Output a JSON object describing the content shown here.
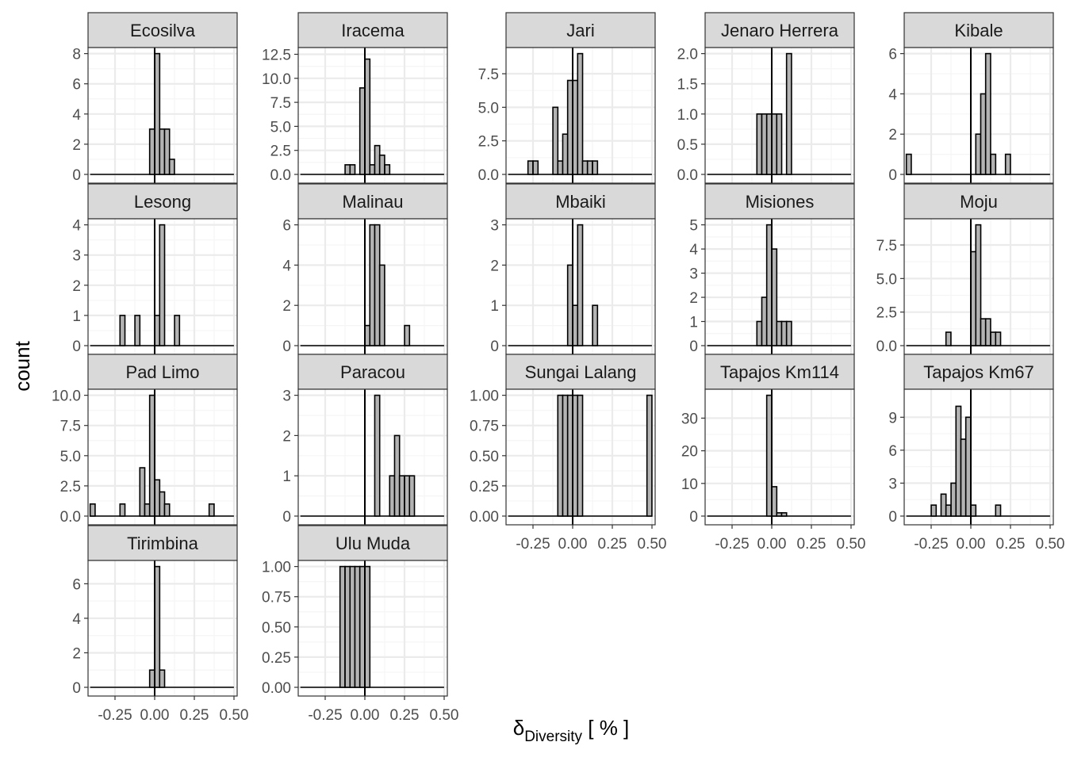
{
  "chart_data": {
    "type": "bar",
    "subtype": "faceted-histogram",
    "ylabel": "count",
    "xlabel": {
      "symbol": "δ",
      "subscript": "Diversity",
      "unit": "[ % ]"
    },
    "x_range": [
      -0.42,
      0.52
    ],
    "x_ticks": [
      {
        "value": -0.25,
        "label": "-0.25"
      },
      {
        "value": 0.0,
        "label": "0.00"
      },
      {
        "value": 0.25,
        "label": "0.25"
      },
      {
        "value": 0.5,
        "label": "0.50"
      }
    ],
    "bin_width": 0.03125,
    "reference_line_x": 0,
    "scales": "free_y",
    "grid": true,
    "facets": [
      {
        "name": "Ecosilva",
        "ymax": 8.4,
        "y_ticks": [
          0,
          2,
          4,
          6,
          8
        ],
        "y_labels": [
          "0",
          "2",
          "4",
          "6",
          "8"
        ],
        "bins": [
          {
            "x": -0.016,
            "count": 3
          },
          {
            "x": 0.016,
            "count": 8
          },
          {
            "x": 0.047,
            "count": 3
          },
          {
            "x": 0.078,
            "count": 3
          },
          {
            "x": 0.109,
            "count": 1
          }
        ]
      },
      {
        "name": "Iracema",
        "ymax": 13.2,
        "y_ticks": [
          0,
          2.5,
          5,
          7.5,
          10,
          12.5
        ],
        "y_labels": [
          "0.0",
          "2.5",
          "5.0",
          "7.5",
          "10.0",
          "12.5"
        ],
        "bins": [
          {
            "x": -0.109,
            "count": 1
          },
          {
            "x": -0.078,
            "count": 1
          },
          {
            "x": -0.016,
            "count": 9
          },
          {
            "x": 0.016,
            "count": 12
          },
          {
            "x": 0.047,
            "count": 1
          },
          {
            "x": 0.078,
            "count": 3
          },
          {
            "x": 0.109,
            "count": 2
          },
          {
            "x": 0.141,
            "count": 1
          }
        ]
      },
      {
        "name": "Jari",
        "ymax": 9.45,
        "y_ticks": [
          0,
          2.5,
          5,
          7.5
        ],
        "y_labels": [
          "0.0",
          "2.5",
          "5.0",
          "7.5"
        ],
        "bins": [
          {
            "x": -0.266,
            "count": 1
          },
          {
            "x": -0.234,
            "count": 1
          },
          {
            "x": -0.109,
            "count": 5
          },
          {
            "x": -0.078,
            "count": 1
          },
          {
            "x": -0.047,
            "count": 3
          },
          {
            "x": -0.016,
            "count": 7
          },
          {
            "x": 0.016,
            "count": 7
          },
          {
            "x": 0.047,
            "count": 9
          },
          {
            "x": 0.078,
            "count": 1
          },
          {
            "x": 0.109,
            "count": 1
          },
          {
            "x": 0.141,
            "count": 1
          }
        ]
      },
      {
        "name": "Jenaro Herrera",
        "ymax": 2.1,
        "y_ticks": [
          0,
          0.5,
          1,
          1.5,
          2
        ],
        "y_labels": [
          "0.0",
          "0.5",
          "1.0",
          "1.5",
          "2.0"
        ],
        "bins": [
          {
            "x": -0.078,
            "count": 1
          },
          {
            "x": -0.047,
            "count": 1
          },
          {
            "x": -0.016,
            "count": 1
          },
          {
            "x": 0.016,
            "count": 1
          },
          {
            "x": 0.047,
            "count": 1
          },
          {
            "x": 0.109,
            "count": 2
          }
        ]
      },
      {
        "name": "Kibale",
        "ymax": 6.3,
        "y_ticks": [
          0,
          2,
          4,
          6
        ],
        "y_labels": [
          "0",
          "2",
          "4",
          "6"
        ],
        "bins": [
          {
            "x": -0.391,
            "count": 1
          },
          {
            "x": 0.047,
            "count": 2
          },
          {
            "x": 0.078,
            "count": 4
          },
          {
            "x": 0.109,
            "count": 6
          },
          {
            "x": 0.141,
            "count": 1
          },
          {
            "x": 0.234,
            "count": 1
          }
        ]
      },
      {
        "name": "Lesong",
        "ymax": 4.2,
        "y_ticks": [
          0,
          1,
          2,
          3,
          4
        ],
        "y_labels": [
          "0",
          "1",
          "2",
          "3",
          "4"
        ],
        "bins": [
          {
            "x": -0.203,
            "count": 1
          },
          {
            "x": -0.109,
            "count": 1
          },
          {
            "x": 0.016,
            "count": 1
          },
          {
            "x": 0.047,
            "count": 4
          },
          {
            "x": 0.141,
            "count": 1
          }
        ]
      },
      {
        "name": "Malinau",
        "ymax": 6.3,
        "y_ticks": [
          0,
          2,
          4,
          6
        ],
        "y_labels": [
          "0",
          "2",
          "4",
          "6"
        ],
        "bins": [
          {
            "x": 0.016,
            "count": 1
          },
          {
            "x": 0.047,
            "count": 6
          },
          {
            "x": 0.078,
            "count": 6
          },
          {
            "x": 0.109,
            "count": 4
          },
          {
            "x": 0.266,
            "count": 1
          }
        ]
      },
      {
        "name": "Mbaiki",
        "ymax": 3.15,
        "y_ticks": [
          0,
          1,
          2,
          3
        ],
        "y_labels": [
          "0",
          "1",
          "2",
          "3"
        ],
        "bins": [
          {
            "x": -0.016,
            "count": 2
          },
          {
            "x": 0.016,
            "count": 1
          },
          {
            "x": 0.047,
            "count": 3
          },
          {
            "x": 0.141,
            "count": 1
          }
        ]
      },
      {
        "name": "Misiones",
        "ymax": 5.25,
        "y_ticks": [
          0,
          1,
          2,
          3,
          4,
          5
        ],
        "y_labels": [
          "0",
          "1",
          "2",
          "3",
          "4",
          "5"
        ],
        "bins": [
          {
            "x": -0.078,
            "count": 1
          },
          {
            "x": -0.047,
            "count": 2
          },
          {
            "x": -0.016,
            "count": 5
          },
          {
            "x": 0.016,
            "count": 4
          },
          {
            "x": 0.047,
            "count": 1
          },
          {
            "x": 0.078,
            "count": 1
          },
          {
            "x": 0.109,
            "count": 1
          }
        ]
      },
      {
        "name": "Moju",
        "ymax": 9.45,
        "y_ticks": [
          0,
          2.5,
          5,
          7.5
        ],
        "y_labels": [
          "0.0",
          "2.5",
          "5.0",
          "7.5"
        ],
        "bins": [
          {
            "x": -0.141,
            "count": 1
          },
          {
            "x": 0.016,
            "count": 7
          },
          {
            "x": 0.047,
            "count": 9
          },
          {
            "x": 0.078,
            "count": 2
          },
          {
            "x": 0.109,
            "count": 2
          },
          {
            "x": 0.141,
            "count": 1
          },
          {
            "x": 0.172,
            "count": 1
          }
        ]
      },
      {
        "name": "Pad Limo",
        "ymax": 10.5,
        "y_ticks": [
          0,
          2.5,
          5,
          7.5,
          10
        ],
        "y_labels": [
          "0.0",
          "2.5",
          "5.0",
          "7.5",
          "10.0"
        ],
        "bins": [
          {
            "x": -0.391,
            "count": 1
          },
          {
            "x": -0.203,
            "count": 1
          },
          {
            "x": -0.078,
            "count": 4
          },
          {
            "x": -0.047,
            "count": 1
          },
          {
            "x": -0.016,
            "count": 10
          },
          {
            "x": 0.016,
            "count": 3
          },
          {
            "x": 0.047,
            "count": 2
          },
          {
            "x": 0.078,
            "count": 1
          },
          {
            "x": 0.359,
            "count": 1
          }
        ]
      },
      {
        "name": "Paracou",
        "ymax": 3.15,
        "y_ticks": [
          0,
          1,
          2,
          3
        ],
        "y_labels": [
          "0",
          "1",
          "2",
          "3"
        ],
        "bins": [
          {
            "x": 0.078,
            "count": 3
          },
          {
            "x": 0.172,
            "count": 1
          },
          {
            "x": 0.203,
            "count": 2
          },
          {
            "x": 0.234,
            "count": 1
          },
          {
            "x": 0.266,
            "count": 1
          },
          {
            "x": 0.297,
            "count": 1
          }
        ]
      },
      {
        "name": "Sungai Lalang",
        "ymax": 1.05,
        "y_ticks": [
          0,
          0.25,
          0.5,
          0.75,
          1
        ],
        "y_labels": [
          "0.00",
          "0.25",
          "0.50",
          "0.75",
          "1.00"
        ],
        "bins": [
          {
            "x": -0.078,
            "count": 1
          },
          {
            "x": -0.047,
            "count": 1
          },
          {
            "x": -0.016,
            "count": 1
          },
          {
            "x": 0.016,
            "count": 1
          },
          {
            "x": 0.047,
            "count": 1
          },
          {
            "x": 0.484,
            "count": 1
          }
        ]
      },
      {
        "name": "Tapajos Km114",
        "ymax": 38.85,
        "y_ticks": [
          0,
          10,
          20,
          30
        ],
        "y_labels": [
          "0",
          "10",
          "20",
          "30"
        ],
        "bins": [
          {
            "x": -0.016,
            "count": 37
          },
          {
            "x": 0.016,
            "count": 9
          },
          {
            "x": 0.047,
            "count": 1
          },
          {
            "x": 0.078,
            "count": 1
          }
        ]
      },
      {
        "name": "Tapajos Km67",
        "ymax": 11.55,
        "y_ticks": [
          0,
          3,
          6,
          9
        ],
        "y_labels": [
          "0",
          "3",
          "6",
          "9"
        ],
        "bins": [
          {
            "x": -0.234,
            "count": 1
          },
          {
            "x": -0.172,
            "count": 2
          },
          {
            "x": -0.141,
            "count": 1
          },
          {
            "x": -0.109,
            "count": 3
          },
          {
            "x": -0.078,
            "count": 10
          },
          {
            "x": -0.047,
            "count": 7
          },
          {
            "x": -0.016,
            "count": 9
          },
          {
            "x": 0.016,
            "count": 1
          },
          {
            "x": 0.172,
            "count": 1
          }
        ]
      },
      {
        "name": "Tirimbina",
        "ymax": 7.35,
        "y_ticks": [
          0,
          2,
          4,
          6
        ],
        "y_labels": [
          "0",
          "2",
          "4",
          "6"
        ],
        "bins": [
          {
            "x": -0.016,
            "count": 1
          },
          {
            "x": 0.016,
            "count": 7
          },
          {
            "x": 0.047,
            "count": 1
          }
        ]
      },
      {
        "name": "Ulu Muda",
        "ymax": 1.05,
        "y_ticks": [
          0,
          0.25,
          0.5,
          0.75,
          1
        ],
        "y_labels": [
          "0.00",
          "0.25",
          "0.50",
          "0.75",
          "1.00"
        ],
        "bins": [
          {
            "x": -0.141,
            "count": 1
          },
          {
            "x": -0.109,
            "count": 1
          },
          {
            "x": -0.078,
            "count": 1
          },
          {
            "x": -0.047,
            "count": 1
          },
          {
            "x": -0.016,
            "count": 1
          },
          {
            "x": 0.016,
            "count": 1
          }
        ]
      }
    ],
    "x_axis_labels_under": [
      "Sungai Lalang",
      "Tapajos Km114",
      "Tapajos Km67",
      "Tirimbina",
      "Ulu Muda"
    ],
    "colors": {
      "bar_fill": "#b3b3b3",
      "bar_stroke": "#000000",
      "strip_fill": "#d9d9d9",
      "strip_stroke": "#333333",
      "panel_border": "#333333",
      "grid_major": "#ebebeb",
      "grid_minor": "#f5f5f5",
      "tick_text": "#4d4d4d",
      "ref_line": "#000000"
    }
  }
}
